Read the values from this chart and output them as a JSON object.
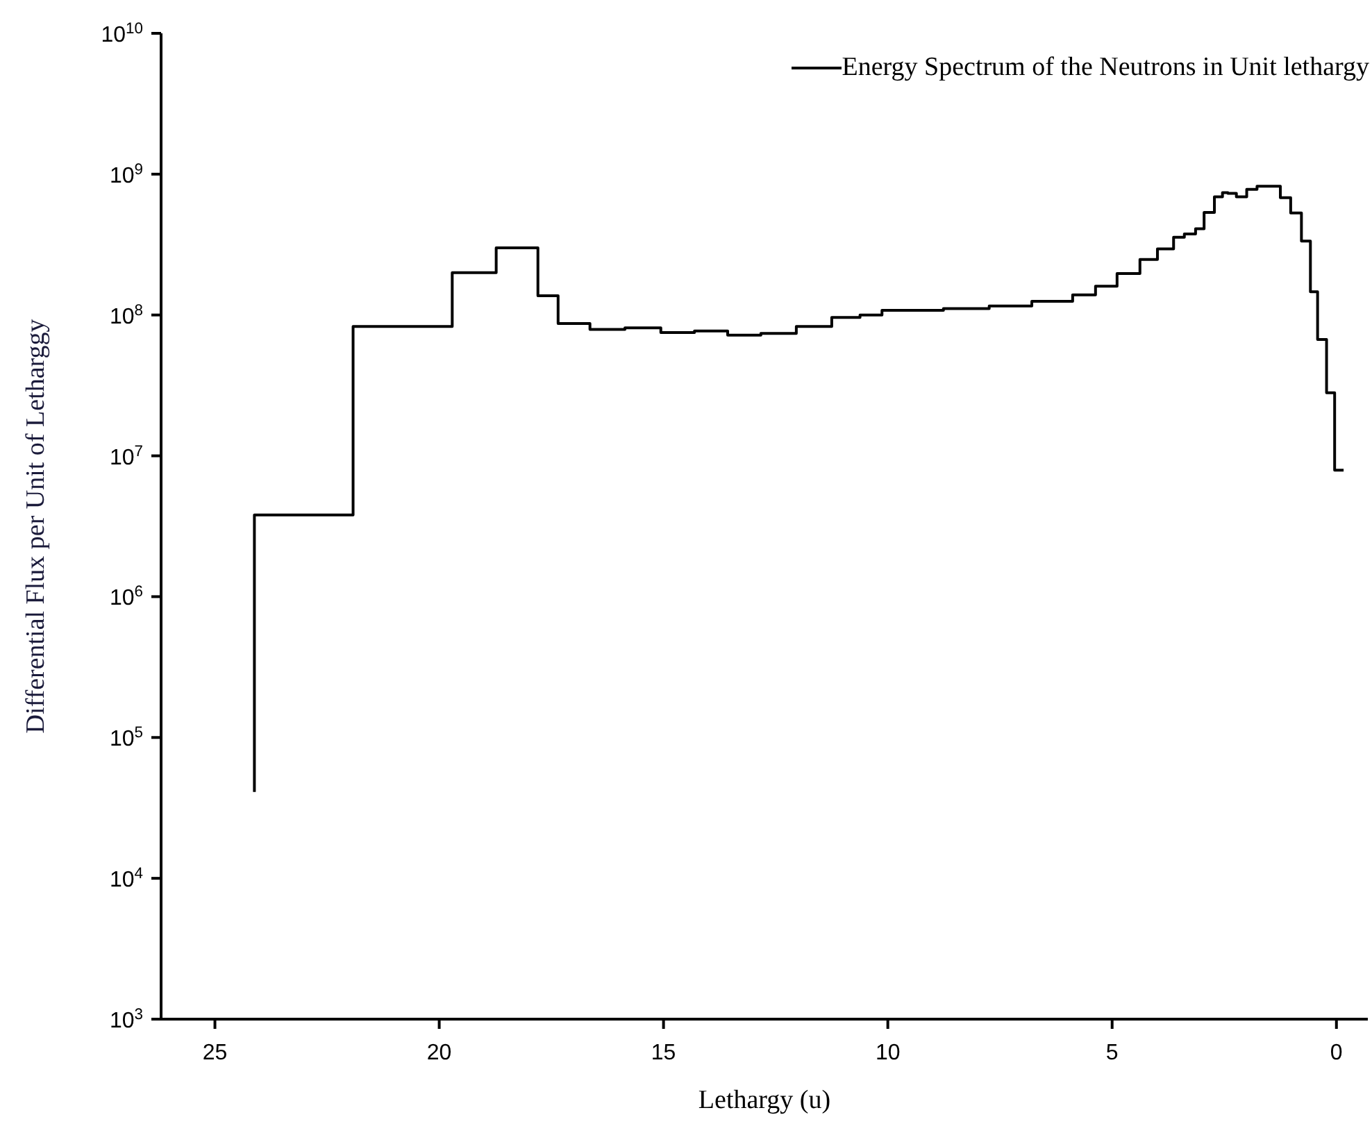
{
  "chart_data": {
    "type": "step",
    "xlabel": "Lethargy (u)",
    "ylabel": "Differential Flux per Unit of Letharggy",
    "log": "y",
    "legend": "top right",
    "marker": "none",
    "line_style": "solid",
    "xlim": [
      26.2,
      -0.7
    ],
    "xticks": [
      25,
      20,
      15,
      10,
      5,
      0
    ],
    "ylim": [
      1000,
      10000000000
    ],
    "yticks": [
      {
        "value": 1000,
        "label": "10$^{3}$"
      },
      {
        "value": 10000,
        "label": "10$^{4}$"
      },
      {
        "value": 100000,
        "label": "10$^{5}$"
      },
      {
        "value": 1000000,
        "label": "10$^{6}$"
      },
      {
        "value": 10000000,
        "label": "10$^{7}$"
      },
      {
        "value": 100000000,
        "label": "10$^{8}$"
      },
      {
        "value": 1000000000,
        "label": "10$^{9}$"
      },
      {
        "value": 10000000000,
        "label": "10$^{10}$"
      }
    ],
    "x": [
      24.12,
      24.12,
      21.92,
      19.71,
      18.73,
      17.8,
      17.35,
      16.64,
      15.86,
      15.06,
      14.31,
      13.57,
      12.83,
      12.04,
      11.25,
      10.62,
      10.13,
      8.76,
      7.74,
      6.79,
      5.88,
      5.37,
      4.89,
      4.38,
      3.99,
      3.63,
      3.39,
      3.14,
      2.95,
      2.72,
      2.54,
      2.42,
      2.23,
      2.0,
      1.77,
      1.25,
      1.02,
      0.78,
      0.58,
      0.42,
      0.22,
      0.04,
      -0.16
    ],
    "series": [
      {
        "name": "Energy Spectrum of the Neutrons in Unit lethargy",
        "color": "#000000",
        "values": [
          41000,
          3800000,
          83000000,
          200000000,
          300000000,
          137000000,
          87000000,
          79000000,
          81000000,
          75000000,
          77000000,
          72000000,
          74000000,
          83000000,
          96000000,
          100000000,
          108000000,
          111000000,
          116000000,
          125000000,
          139000000,
          160000000,
          197000000,
          248000000,
          295000000,
          356000000,
          376000000,
          410000000,
          535000000,
          690000000,
          740000000,
          730000000,
          690000000,
          780000000,
          820000000,
          680000000,
          530000000,
          335000000,
          146000000,
          67000000,
          28000000,
          7900000,
          7900000
        ]
      }
    ]
  }
}
